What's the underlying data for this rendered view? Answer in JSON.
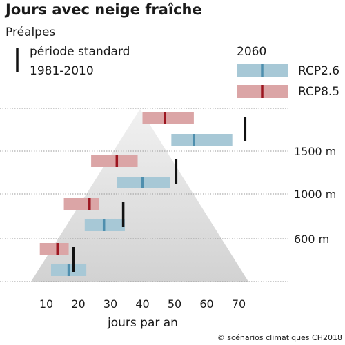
{
  "chart_data": {
    "type": "range-bar",
    "title": "Jours avec neige fraîche",
    "subtitle": "Préalpes",
    "legend": {
      "reference_label_line1": "période standard",
      "reference_label_line2": "1981-2010",
      "scenario_header": "2060",
      "series": [
        {
          "name": "RCP2.6",
          "color": "#a7c8d6",
          "median_color": "#4f8fae"
        },
        {
          "name": "RCP8.5",
          "color": "#dba5a6",
          "median_color": "#9c1620"
        }
      ],
      "reference_color": "#111111"
    },
    "x_axis": {
      "label": "jours par an",
      "range": [
        5,
        74
      ],
      "ticks": [
        10,
        20,
        30,
        40,
        50,
        60,
        70
      ],
      "tick_labels": [
        "10",
        "20",
        "30",
        "40",
        "50",
        "60",
        "70"
      ]
    },
    "elevation_labels": [
      "1500 m",
      "1000 m",
      "600 m"
    ],
    "elevation_levels": [
      {
        "reference": 72,
        "rcp26": {
          "low": 49,
          "median": 56,
          "high": 68
        },
        "rcp85": {
          "low": 40,
          "median": 47,
          "high": 56
        }
      },
      {
        "reference": 50.5,
        "rcp26": {
          "low": 32,
          "median": 40,
          "high": 48.5
        },
        "rcp85": {
          "low": 24,
          "median": 32,
          "high": 38.5
        }
      },
      {
        "reference": 34,
        "rcp26": {
          "low": 22,
          "median": 28,
          "high": 34.5
        },
        "rcp85": {
          "low": 15.5,
          "median": 23.5,
          "high": 26.5
        }
      },
      {
        "reference": 18.5,
        "rcp26": {
          "low": 11.5,
          "median": 17,
          "high": 22.5
        },
        "rcp85": {
          "low": 8,
          "median": 13.5,
          "high": 17
        }
      }
    ]
  },
  "source": "© scénarios climatiques CH2018"
}
